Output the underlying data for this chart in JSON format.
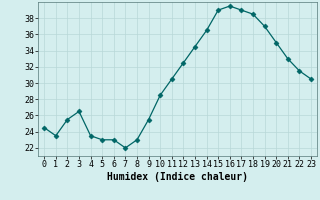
{
  "x": [
    0,
    1,
    2,
    3,
    4,
    5,
    6,
    7,
    8,
    9,
    10,
    11,
    12,
    13,
    14,
    15,
    16,
    17,
    18,
    19,
    20,
    21,
    22,
    23
  ],
  "y": [
    24.5,
    23.5,
    25.5,
    26.5,
    23.5,
    23.0,
    23.0,
    22.0,
    23.0,
    25.5,
    28.5,
    30.5,
    32.5,
    34.5,
    36.5,
    39.0,
    39.5,
    39.0,
    38.5,
    37.0,
    35.0,
    33.0,
    31.5,
    30.5
  ],
  "xlabel": "Humidex (Indice chaleur)",
  "ylim": [
    21,
    40
  ],
  "yticks": [
    22,
    24,
    26,
    28,
    30,
    32,
    34,
    36,
    38
  ],
  "line_color": "#006666",
  "marker": "D",
  "marker_size": 2.5,
  "bg_color": "#d4eeee",
  "grid_color": "#b8d8d8",
  "label_fontsize": 7,
  "tick_fontsize": 6
}
